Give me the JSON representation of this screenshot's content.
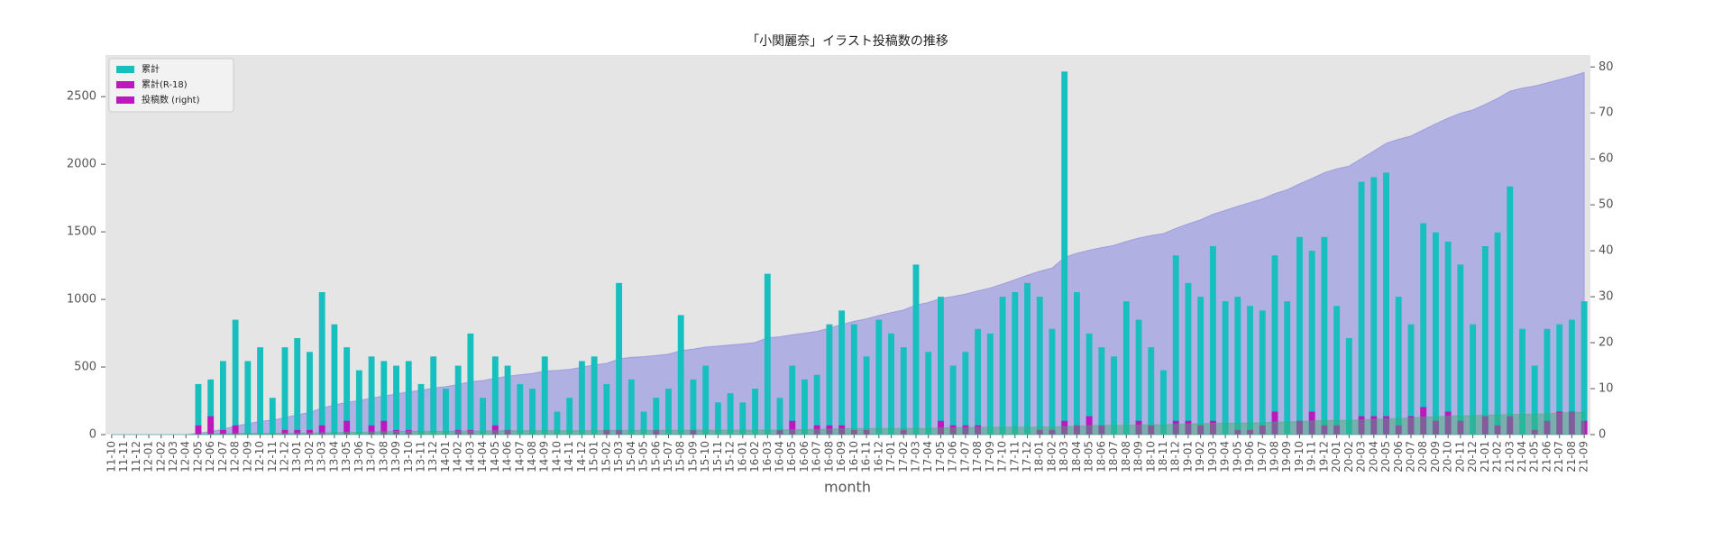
{
  "chart_data": {
    "type": "combo",
    "title": "「小関麗奈」イラスト投稿数の推移",
    "xlabel": "month",
    "categories": [
      "11-10",
      "11-11",
      "11-12",
      "12-01",
      "12-02",
      "12-03",
      "12-04",
      "12-05",
      "12-06",
      "12-07",
      "12-08",
      "12-09",
      "12-10",
      "12-11",
      "12-12",
      "13-01",
      "13-02",
      "13-03",
      "13-04",
      "13-05",
      "13-06",
      "13-07",
      "13-08",
      "13-09",
      "13-10",
      "13-11",
      "13-12",
      "14-01",
      "14-02",
      "14-03",
      "14-04",
      "14-05",
      "14-06",
      "14-07",
      "14-08",
      "14-09",
      "14-10",
      "14-11",
      "14-12",
      "15-01",
      "15-02",
      "15-03",
      "15-04",
      "15-05",
      "15-06",
      "15-07",
      "15-08",
      "15-09",
      "15-10",
      "15-11",
      "15-12",
      "16-01",
      "16-02",
      "16-03",
      "16-04",
      "16-05",
      "16-06",
      "16-07",
      "16-08",
      "16-09",
      "16-10",
      "16-11",
      "16-12",
      "17-01",
      "17-02",
      "17-03",
      "17-04",
      "17-05",
      "17-06",
      "17-07",
      "17-08",
      "17-09",
      "17-10",
      "17-11",
      "17-12",
      "18-01",
      "18-02",
      "18-03",
      "18-04",
      "18-05",
      "18-06",
      "18-07",
      "18-08",
      "18-09",
      "18-10",
      "18-11",
      "18-12",
      "19-01",
      "19-02",
      "19-03",
      "19-04",
      "19-05",
      "19-06",
      "19-07",
      "19-08",
      "19-09",
      "19-10",
      "19-11",
      "19-12",
      "20-01",
      "20-02",
      "20-03",
      "20-04",
      "20-05",
      "20-06",
      "20-07",
      "20-08",
      "20-09",
      "20-10",
      "20-11",
      "20-12",
      "21-01",
      "21-02",
      "21-03",
      "21-04",
      "21-05",
      "21-06",
      "21-07",
      "21-08",
      "21-09"
    ],
    "series": [
      {
        "type": "area",
        "axis": "y",
        "color": "rgba(110,110,225,0.45)",
        "values": [
          0,
          0,
          0,
          0,
          0,
          0,
          0,
          11,
          23,
          39,
          64,
          80,
          99,
          107,
          126,
          147,
          165,
          196,
          220,
          239,
          253,
          270,
          286,
          301,
          317,
          328,
          345,
          355,
          370,
          392,
          400,
          417,
          432,
          443,
          453,
          470,
          475,
          483,
          499,
          516,
          527,
          560,
          572,
          577,
          585,
          595,
          621,
          633,
          648,
          655,
          664,
          671,
          681,
          716,
          724,
          739,
          751,
          764,
          788,
          815,
          839,
          856,
          881,
          903,
          922,
          959,
          977,
          1007,
          1022,
          1040,
          1063,
          1085,
          1115,
          1146,
          1179,
          1209,
          1232,
          1311,
          1342,
          1364,
          1383,
          1400,
          1429,
          1454,
          1473,
          1487,
          1526,
          1559,
          1589,
          1630,
          1659,
          1689,
          1717,
          1744,
          1783,
          1812,
          1855,
          1895,
          1938,
          1966,
          1987,
          2042,
          2098,
          2155,
          2185,
          2209,
          2255,
          2299,
          2341,
          2378,
          2402,
          2443,
          2487,
          2541,
          2564,
          2579,
          2602,
          2626,
          2651,
          2680
        ]
      },
      {
        "type": "bar",
        "axis": "y2",
        "color": "#17bfbf",
        "values": [
          0,
          0,
          0,
          0,
          0,
          0,
          0,
          11,
          12,
          16,
          25,
          16,
          19,
          8,
          19,
          21,
          18,
          31,
          24,
          19,
          14,
          17,
          16,
          15,
          16,
          11,
          17,
          10,
          15,
          22,
          8,
          17,
          15,
          11,
          10,
          17,
          5,
          8,
          16,
          17,
          11,
          33,
          12,
          5,
          8,
          10,
          26,
          12,
          15,
          7,
          9,
          7,
          10,
          35,
          8,
          15,
          12,
          13,
          24,
          27,
          24,
          17,
          25,
          22,
          19,
          37,
          18,
          30,
          15,
          18,
          23,
          22,
          30,
          31,
          33,
          30,
          23,
          79,
          31,
          22,
          19,
          17,
          29,
          25,
          19,
          14,
          39,
          33,
          30,
          41,
          29,
          30,
          28,
          27,
          39,
          29,
          43,
          40,
          43,
          28,
          21,
          55,
          56,
          57,
          30,
          24,
          46,
          44,
          42,
          37,
          24,
          41,
          44,
          54,
          23,
          15,
          23,
          24,
          25,
          29
        ]
      },
      {
        "type": "bar",
        "axis": "y2",
        "color": "#bf17bf",
        "values": [
          0,
          0,
          0,
          0,
          0,
          0,
          0,
          2,
          4,
          1,
          2,
          0,
          0,
          0,
          1,
          1,
          1,
          2,
          0,
          3,
          0,
          2,
          3,
          1,
          1,
          0,
          0,
          0,
          1,
          1,
          0,
          2,
          1,
          0,
          0,
          0,
          0,
          0,
          0,
          0,
          1,
          1,
          0,
          0,
          1,
          0,
          0,
          1,
          0,
          0,
          0,
          0,
          0,
          0,
          1,
          3,
          0,
          2,
          2,
          2,
          1,
          1,
          0,
          0,
          1,
          0,
          0,
          3,
          2,
          2,
          2,
          0,
          0,
          0,
          0,
          1,
          1,
          3,
          2,
          4,
          2,
          0,
          0,
          3,
          2,
          0,
          3,
          3,
          2,
          3,
          0,
          1,
          1,
          2,
          5,
          0,
          3,
          5,
          2,
          2,
          0,
          4,
          4,
          4,
          2,
          4,
          6,
          3,
          5,
          3,
          0,
          4,
          2,
          4,
          0,
          1,
          3,
          5,
          5,
          3
        ]
      },
      {
        "type": "area",
        "axis": "y",
        "color": "rgba(60,175,110,0.45)",
        "values": [
          0,
          0,
          0,
          0,
          0,
          0,
          0,
          2,
          6,
          7,
          9,
          9,
          9,
          9,
          10,
          11,
          12,
          14,
          14,
          17,
          17,
          19,
          22,
          23,
          24,
          24,
          24,
          24,
          25,
          26,
          26,
          28,
          29,
          29,
          29,
          29,
          29,
          29,
          29,
          29,
          30,
          31,
          31,
          31,
          32,
          32,
          32,
          33,
          33,
          33,
          33,
          33,
          33,
          33,
          34,
          37,
          37,
          39,
          41,
          43,
          44,
          45,
          45,
          45,
          46,
          46,
          46,
          49,
          51,
          53,
          55,
          55,
          55,
          55,
          55,
          56,
          57,
          60,
          62,
          66,
          68,
          68,
          68,
          71,
          73,
          73,
          76,
          79,
          81,
          84,
          84,
          85,
          86,
          88,
          93,
          93,
          96,
          101,
          103,
          105,
          105,
          109,
          113,
          117,
          119,
          123,
          129,
          132,
          137,
          140,
          140,
          144,
          146,
          150,
          150,
          151,
          154,
          159,
          164,
          167
        ]
      }
    ],
    "legend": {
      "loc": "upper left",
      "items": [
        {
          "name": "累計",
          "color": "#17bfbf"
        },
        {
          "name": "累計(R-18)",
          "color": "#bf17bf"
        },
        {
          "name": "投稿数 (right)",
          "color": "#bf17bf"
        }
      ]
    },
    "ylim": [
      0,
      2808
    ],
    "yticks": [
      0,
      500,
      1000,
      1500,
      2000,
      2500
    ],
    "y2lim": [
      0,
      82.6
    ],
    "y2ticks": [
      0,
      10,
      20,
      30,
      40,
      50,
      60,
      70,
      80
    ],
    "grid": false
  }
}
